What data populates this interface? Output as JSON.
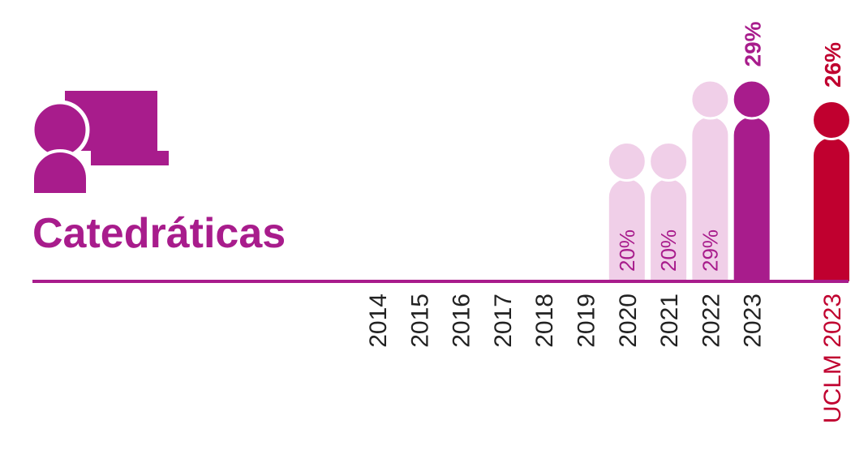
{
  "chart_data": {
    "type": "bar",
    "title": "Catedráticas",
    "categories": [
      "2014",
      "2015",
      "2016",
      "2017",
      "2018",
      "2019",
      "2020",
      "2021",
      "2022",
      "2023",
      "UCLM 2023"
    ],
    "values": [
      null,
      null,
      null,
      null,
      null,
      null,
      20,
      20,
      29,
      29,
      26
    ],
    "value_labels": [
      null,
      null,
      null,
      null,
      null,
      null,
      "20%",
      "20%",
      "29%",
      "29%",
      "26%"
    ],
    "colors": [
      "#f0cfe8",
      "#f0cfe8",
      "#f0cfe8",
      "#f0cfe8",
      "#f0cfe8",
      "#f0cfe8",
      "#f0cfe8",
      "#f0cfe8",
      "#f0cfe8",
      "#a81c8c",
      "#c0002f"
    ],
    "highlight": [
      false,
      false,
      false,
      false,
      false,
      false,
      false,
      false,
      false,
      true,
      true
    ],
    "category_colors": [
      "#222222",
      "#222222",
      "#222222",
      "#222222",
      "#222222",
      "#222222",
      "#222222",
      "#222222",
      "#222222",
      "#222222",
      "#c0002f"
    ],
    "accent_color": "#a81c8c"
  }
}
